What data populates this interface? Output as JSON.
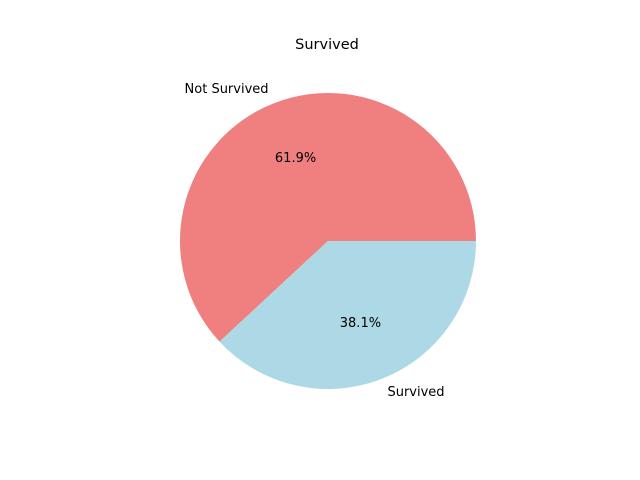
{
  "chart_data": {
    "type": "pie",
    "title": "Survived",
    "categories": [
      "Not Survived",
      "Survived"
    ],
    "values": [
      61.9,
      38.1
    ],
    "percent_labels": [
      "61.9%",
      "38.1%"
    ],
    "colors": [
      "#f08080",
      "#add8e6"
    ],
    "start_angle_deg": 0,
    "direction": "counterclockwise",
    "legend": "none"
  }
}
